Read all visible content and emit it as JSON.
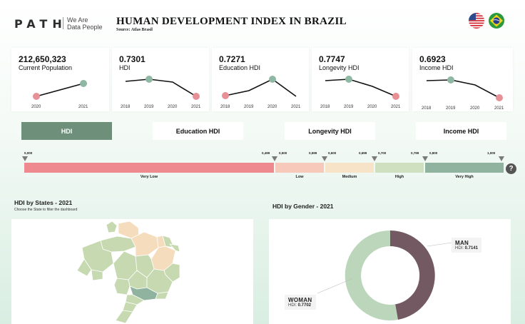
{
  "header": {
    "logo": "PATH",
    "tagline_line1": "We Are",
    "tagline_line2": "Data People",
    "title": "HUMAN DEVELOPMENT INDEX IN BRAZIL",
    "source": "Source: Atlas Brasil"
  },
  "flags": [
    {
      "name": "us-flag-icon"
    },
    {
      "name": "brazil-flag-icon"
    }
  ],
  "cards": [
    {
      "value": "212,650,323",
      "label": "Current Population",
      "years": [
        "2020",
        "2021"
      ]
    },
    {
      "value": "0.7301",
      "label": "HDI",
      "years": [
        "2018",
        "2019",
        "2020",
        "2021"
      ]
    },
    {
      "value": "0.7271",
      "label": "Education HDI",
      "years": [
        "2018",
        "2019",
        "2020",
        "2021"
      ]
    },
    {
      "value": "0.7747",
      "label": "Longevity HDI",
      "years": [
        "2018",
        "2019",
        "2020",
        "2021"
      ]
    },
    {
      "value": "0.6923",
      "label": "Income HDI",
      "years": [
        "2018",
        "2019",
        "2020",
        "2021"
      ]
    }
  ],
  "tabs": [
    {
      "label": "HDI",
      "active": true
    },
    {
      "label": "Education HDI",
      "active": false
    },
    {
      "label": "Longevity HDI",
      "active": false
    },
    {
      "label": "Income HDI",
      "active": false
    }
  ],
  "scale": {
    "markers": [
      "0,000",
      "0,499",
      "0,500",
      "0,599",
      "0,600",
      "0,699",
      "0,700",
      "0,799",
      "0,800",
      "1,000"
    ],
    "segments": [
      {
        "label": "Very Low",
        "color": "#ee8a8f"
      },
      {
        "label": "Low",
        "color": "#f7c9bb"
      },
      {
        "label": "Medium",
        "color": "#f7e3c7"
      },
      {
        "label": "High",
        "color": "#cfe0c1"
      },
      {
        "label": "Very High",
        "color": "#8fb39e"
      }
    ],
    "help": "?"
  },
  "states_section": {
    "title": "HDI by States - 2021",
    "subtitle": "Choose the State to filter the dashboard"
  },
  "gender_section": {
    "title": "HDI by Gender - 2021",
    "man": {
      "label": "MAN",
      "prefix": "HDI: ",
      "value": "0.7141",
      "color": "#735a62"
    },
    "woman": {
      "label": "WOMAN",
      "prefix": "HDI: ",
      "value": "0.7702",
      "color": "#bcd6bc"
    }
  },
  "colors": {
    "accent": "#6e8f7a",
    "dot_red": "#e79096",
    "dot_green": "#8fb8a4"
  }
}
